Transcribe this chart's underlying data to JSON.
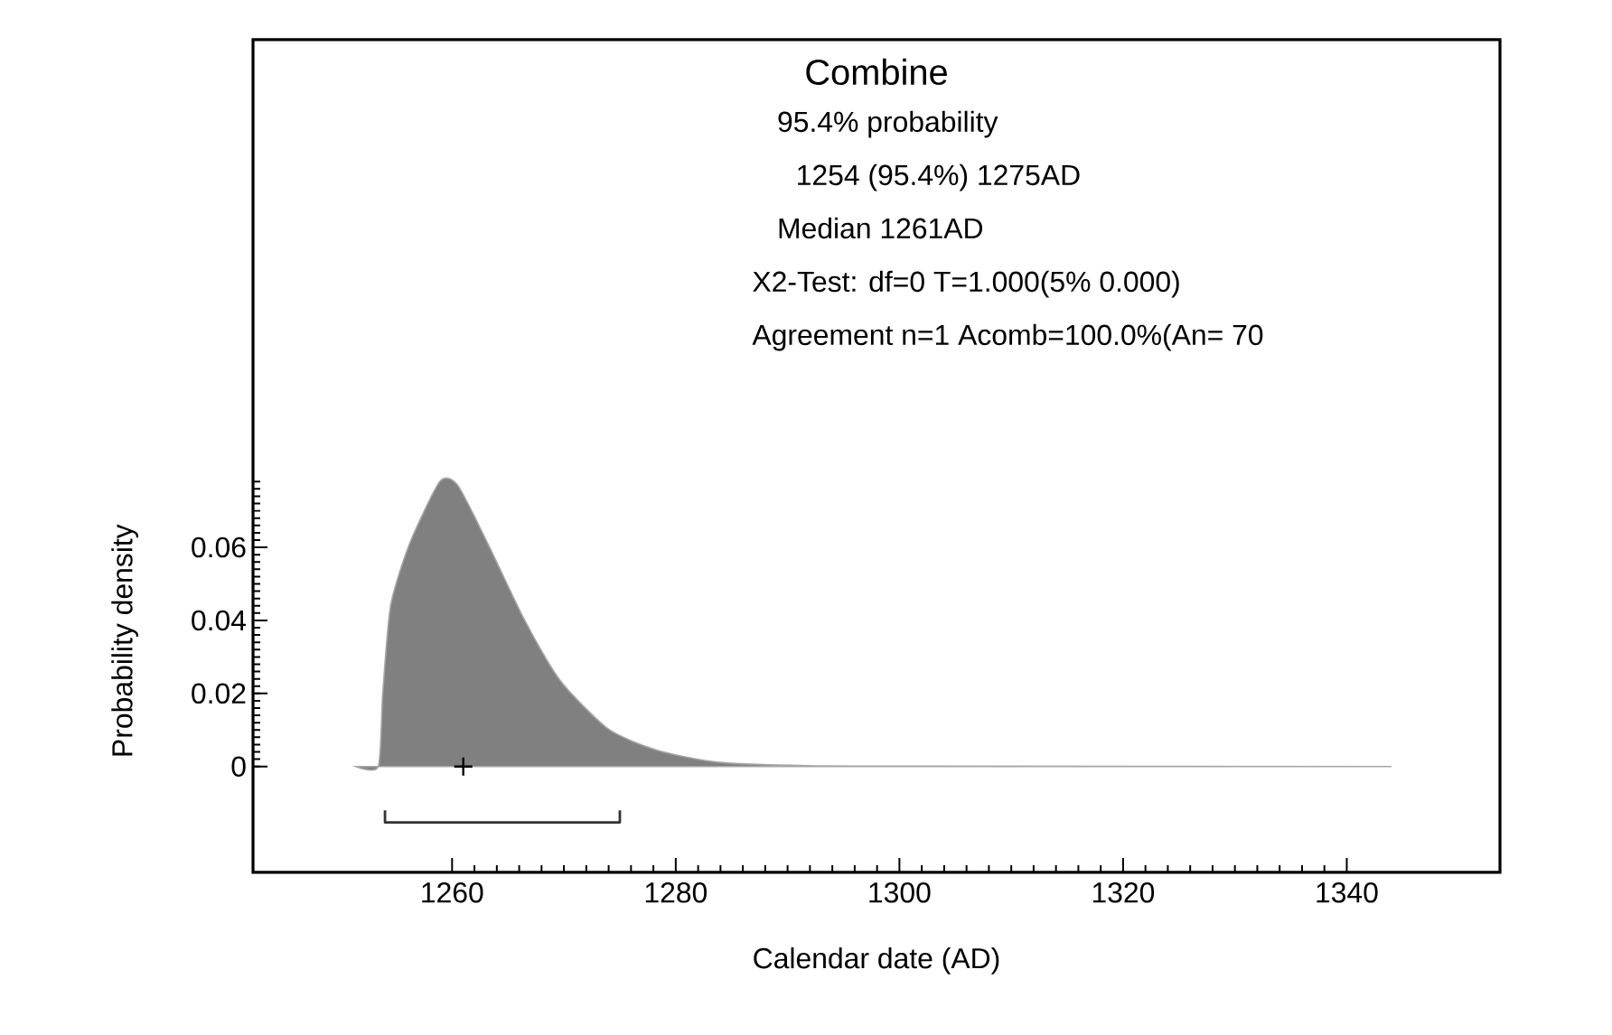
{
  "chart_data": {
    "type": "area",
    "title": "Combine",
    "xlabel": "Calendar date (AD)",
    "ylabel": "Probability density",
    "annotations": [
      "95.4% probability",
      "1254 (95.4%) 1275AD",
      "Median 1261AD",
      "X2-Test: df=0 T=1.000(5% 0.000)",
      "Agreement n=1 Acomb=100.0%(An= 70"
    ],
    "xlim": [
      1242.2,
      1353.7
    ],
    "xticks": [
      1260,
      1280,
      1300,
      1320,
      1340
    ],
    "ylim": [
      -0.029,
      0.199
    ],
    "yticks": [
      0,
      0.02,
      0.04,
      0.06
    ],
    "series": [
      {
        "color": "#808080",
        "x": [
          1251.4,
          1253.4,
          1253.8,
          1254.5,
          1256.2,
          1258.9,
          1260.5,
          1263.2,
          1266.5,
          1269.7,
          1274.0,
          1278.3,
          1283.7,
          1291.8,
          1300,
          1344
        ],
        "values": [
          0,
          0,
          0.02,
          0.044,
          0.061,
          0.078,
          0.077,
          0.061,
          0.04,
          0.0234,
          0.0102,
          0.0045,
          0.0012,
          0.0002,
          0.0001,
          0
        ]
      },
      {
        "type": "scatter",
        "marker": "cross",
        "color": "#000000",
        "x": [
          1261
        ],
        "values": [
          0
        ]
      },
      {
        "type": "line",
        "color": "#333333",
        "x": [
          1254,
          1254,
          1275,
          1275
        ],
        "values": [
          -0.012,
          -0.0153,
          -0.0153,
          -0.012
        ]
      }
    ]
  }
}
